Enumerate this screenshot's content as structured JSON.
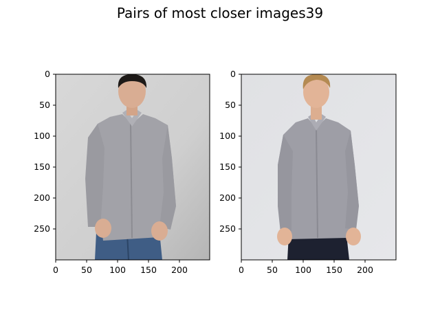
{
  "figure": {
    "title": "Pairs of most closer images39"
  },
  "panels": [
    {
      "name": "left",
      "image": "model wearing grey button-down shirt and blue jeans, dark hair",
      "xticks": [
        "0",
        "50",
        "100",
        "150",
        "200"
      ],
      "yticks": [
        "0",
        "50",
        "100",
        "150",
        "200",
        "250"
      ],
      "colors": {
        "background": "#d4d4d4",
        "shirt": "#a2a2a8",
        "jeans": "#3f5d85",
        "hair": "#1e1a18",
        "skin": "#d9ad93"
      }
    },
    {
      "name": "right",
      "image": "model wearing grey button-down shirt and dark pants, blond hair",
      "xticks": [
        "0",
        "50",
        "100",
        "150",
        "200"
      ],
      "yticks": [
        "0",
        "50",
        "100",
        "150",
        "200",
        "250"
      ],
      "colors": {
        "background": "#e2e3e6",
        "shirt": "#9e9ea6",
        "pants": "#1d2130",
        "hair": "#b48a52",
        "skin": "#e2b497"
      }
    }
  ]
}
